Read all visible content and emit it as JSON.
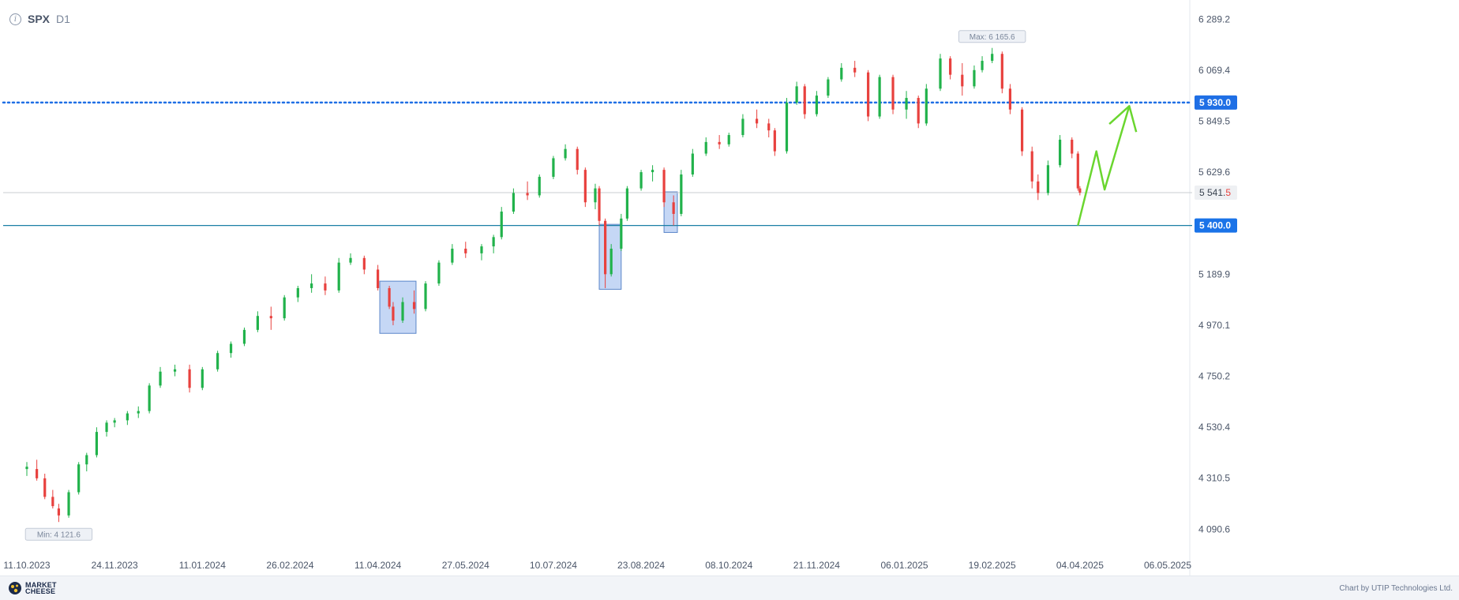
{
  "header": {
    "info_icon": "info-circle-icon",
    "symbol": "SPX",
    "timeframe": "D1"
  },
  "footer": {
    "logo_text": "MARKET CHEESE",
    "credit": "Chart by UTIP Technologies Ltd."
  },
  "chart_data": {
    "type": "candlestick",
    "symbol": "SPX",
    "timeframe": "D1",
    "x_tick_labels": [
      "11.10.2023",
      "24.11.2023",
      "11.01.2024",
      "26.02.2024",
      "11.04.2024",
      "27.05.2024",
      "10.07.2024",
      "23.08.2024",
      "08.10.2024",
      "21.11.2024",
      "06.01.2025",
      "19.02.2025",
      "04.04.2025",
      "06.05.2025"
    ],
    "y_tick_labels": [
      "6 289.2",
      "6 069.4",
      "5 849.5",
      "5 629.6",
      "5 189.9",
      "4 970.1",
      "4 750.2",
      "4 530.4",
      "4 310.5",
      "4 090.6"
    ],
    "y_ticks": [
      6289.2,
      6069.4,
      5849.5,
      5629.6,
      5189.9,
      4970.1,
      4750.2,
      4530.4,
      4310.5,
      4090.6
    ],
    "ylim": [
      4010,
      6345
    ],
    "max_label": "Max: 6 165.6",
    "max_value": 6165.6,
    "max_date": "19.02.2025",
    "min_label": "Min: 4 121.6",
    "min_value": 4121.6,
    "min_date": "27.10.2023",
    "current_price": 5541.5,
    "current_price_label": "5 541.5",
    "current_price_label_main": "5 541.",
    "current_price_label_last": "5",
    "horizontal_levels": [
      {
        "value": 5930.0,
        "label": "5 930.0",
        "style": "dotted",
        "color": "#1f6fe5"
      },
      {
        "value": 5400.0,
        "label": "5 400.0",
        "style": "solid",
        "color": "#1a7fa6"
      }
    ],
    "highlight_zones": [
      {
        "date_from": "12.04.2024",
        "date_to": "01.05.2024",
        "low": 4935,
        "high": 5160
      },
      {
        "date_from": "02.08.2024",
        "date_to": "13.08.2024",
        "low": 5125,
        "high": 5405
      },
      {
        "date_from": "04.09.2024",
        "date_to": "11.09.2024",
        "low": 5370,
        "high": 5545
      }
    ],
    "projection_path": [
      {
        "date": "03.04.2025",
        "value": 5400
      },
      {
        "date": "10.04.2025",
        "value": 5720
      },
      {
        "date": "13.04.2025",
        "value": 5555
      },
      {
        "date": "22.04.2025",
        "value": 5915
      }
    ],
    "candles": [
      {
        "date": "11.10.2023",
        "o": 4350,
        "h": 4380,
        "l": 4320,
        "c": 4360
      },
      {
        "date": "16.10.2023",
        "o": 4350,
        "h": 4390,
        "l": 4300,
        "c": 4310
      },
      {
        "date": "20.10.2023",
        "o": 4310,
        "h": 4330,
        "l": 4220,
        "c": 4230
      },
      {
        "date": "24.10.2023",
        "o": 4230,
        "h": 4260,
        "l": 4180,
        "c": 4190
      },
      {
        "date": "27.10.2023",
        "o": 4180,
        "h": 4200,
        "l": 4121.6,
        "c": 4150
      },
      {
        "date": "01.11.2023",
        "o": 4150,
        "h": 4260,
        "l": 4140,
        "c": 4250
      },
      {
        "date": "06.11.2023",
        "o": 4250,
        "h": 4380,
        "l": 4240,
        "c": 4370
      },
      {
        "date": "10.11.2023",
        "o": 4370,
        "h": 4420,
        "l": 4340,
        "c": 4410
      },
      {
        "date": "15.11.2023",
        "o": 4410,
        "h": 4530,
        "l": 4400,
        "c": 4510
      },
      {
        "date": "20.11.2023",
        "o": 4510,
        "h": 4560,
        "l": 4490,
        "c": 4550
      },
      {
        "date": "24.11.2023",
        "o": 4550,
        "h": 4570,
        "l": 4530,
        "c": 4560
      },
      {
        "date": "01.12.2023",
        "o": 4560,
        "h": 4600,
        "l": 4540,
        "c": 4590
      },
      {
        "date": "07.12.2023",
        "o": 4590,
        "h": 4620,
        "l": 4570,
        "c": 4600
      },
      {
        "date": "13.12.2023",
        "o": 4600,
        "h": 4720,
        "l": 4590,
        "c": 4710
      },
      {
        "date": "19.12.2023",
        "o": 4710,
        "h": 4790,
        "l": 4700,
        "c": 4770
      },
      {
        "date": "27.12.2023",
        "o": 4770,
        "h": 4800,
        "l": 4750,
        "c": 4780
      },
      {
        "date": "04.01.2024",
        "o": 4780,
        "h": 4800,
        "l": 4680,
        "c": 4700
      },
      {
        "date": "11.01.2024",
        "o": 4700,
        "h": 4790,
        "l": 4690,
        "c": 4780
      },
      {
        "date": "19.01.2024",
        "o": 4780,
        "h": 4860,
        "l": 4770,
        "c": 4850
      },
      {
        "date": "26.01.2024",
        "o": 4850,
        "h": 4900,
        "l": 4830,
        "c": 4890
      },
      {
        "date": "02.02.2024",
        "o": 4890,
        "h": 4960,
        "l": 4880,
        "c": 4950
      },
      {
        "date": "09.02.2024",
        "o": 4950,
        "h": 5030,
        "l": 4940,
        "c": 5010
      },
      {
        "date": "16.02.2024",
        "o": 5010,
        "h": 5050,
        "l": 4950,
        "c": 5000
      },
      {
        "date": "23.02.2024",
        "o": 5000,
        "h": 5100,
        "l": 4990,
        "c": 5090
      },
      {
        "date": "01.03.2024",
        "o": 5090,
        "h": 5140,
        "l": 5070,
        "c": 5130
      },
      {
        "date": "08.03.2024",
        "o": 5130,
        "h": 5190,
        "l": 5110,
        "c": 5150
      },
      {
        "date": "15.03.2024",
        "o": 5150,
        "h": 5180,
        "l": 5100,
        "c": 5120
      },
      {
        "date": "22.03.2024",
        "o": 5120,
        "h": 5260,
        "l": 5110,
        "c": 5240
      },
      {
        "date": "28.03.2024",
        "o": 5240,
        "h": 5280,
        "l": 5230,
        "c": 5260
      },
      {
        "date": "04.04.2024",
        "o": 5260,
        "h": 5270,
        "l": 5190,
        "c": 5210
      },
      {
        "date": "11.04.2024",
        "o": 5210,
        "h": 5230,
        "l": 5120,
        "c": 5130
      },
      {
        "date": "17.04.2024",
        "o": 5130,
        "h": 5140,
        "l": 5040,
        "c": 5050
      },
      {
        "date": "19.04.2024",
        "o": 5050,
        "h": 5070,
        "l": 4970,
        "c": 4990
      },
      {
        "date": "24.04.2024",
        "o": 4990,
        "h": 5090,
        "l": 4980,
        "c": 5070
      },
      {
        "date": "30.04.2024",
        "o": 5070,
        "h": 5120,
        "l": 5020,
        "c": 5040
      },
      {
        "date": "06.05.2024",
        "o": 5040,
        "h": 5160,
        "l": 5030,
        "c": 5150
      },
      {
        "date": "13.05.2024",
        "o": 5150,
        "h": 5250,
        "l": 5140,
        "c": 5240
      },
      {
        "date": "20.05.2024",
        "o": 5240,
        "h": 5320,
        "l": 5230,
        "c": 5300
      },
      {
        "date": "27.05.2024",
        "o": 5300,
        "h": 5330,
        "l": 5260,
        "c": 5280
      },
      {
        "date": "04.06.2024",
        "o": 5280,
        "h": 5320,
        "l": 5250,
        "c": 5310
      },
      {
        "date": "10.06.2024",
        "o": 5310,
        "h": 5360,
        "l": 5280,
        "c": 5350
      },
      {
        "date": "14.06.2024",
        "o": 5350,
        "h": 5480,
        "l": 5340,
        "c": 5460
      },
      {
        "date": "20.06.2024",
        "o": 5460,
        "h": 5560,
        "l": 5450,
        "c": 5540
      },
      {
        "date": "27.06.2024",
        "o": 5540,
        "h": 5590,
        "l": 5510,
        "c": 5530
      },
      {
        "date": "03.07.2024",
        "o": 5530,
        "h": 5620,
        "l": 5520,
        "c": 5610
      },
      {
        "date": "10.07.2024",
        "o": 5610,
        "h": 5700,
        "l": 5600,
        "c": 5690
      },
      {
        "date": "16.07.2024",
        "o": 5690,
        "h": 5750,
        "l": 5680,
        "c": 5730
      },
      {
        "date": "22.07.2024",
        "o": 5730,
        "h": 5740,
        "l": 5620,
        "c": 5640
      },
      {
        "date": "26.07.2024",
        "o": 5640,
        "h": 5650,
        "l": 5480,
        "c": 5500
      },
      {
        "date": "31.07.2024",
        "o": 5500,
        "h": 5580,
        "l": 5470,
        "c": 5560
      },
      {
        "date": "02.08.2024",
        "o": 5560,
        "h": 5570,
        "l": 5400,
        "c": 5420
      },
      {
        "date": "05.08.2024",
        "o": 5420,
        "h": 5430,
        "l": 5130,
        "c": 5190
      },
      {
        "date": "08.08.2024",
        "o": 5190,
        "h": 5320,
        "l": 5180,
        "c": 5300
      },
      {
        "date": "13.08.2024",
        "o": 5300,
        "h": 5450,
        "l": 5290,
        "c": 5430
      },
      {
        "date": "16.08.2024",
        "o": 5430,
        "h": 5570,
        "l": 5420,
        "c": 5560
      },
      {
        "date": "23.08.2024",
        "o": 5560,
        "h": 5640,
        "l": 5550,
        "c": 5630
      },
      {
        "date": "29.08.2024",
        "o": 5630,
        "h": 5660,
        "l": 5590,
        "c": 5640
      },
      {
        "date": "04.09.2024",
        "o": 5640,
        "h": 5650,
        "l": 5480,
        "c": 5500
      },
      {
        "date": "09.09.2024",
        "o": 5500,
        "h": 5530,
        "l": 5400,
        "c": 5450
      },
      {
        "date": "13.09.2024",
        "o": 5450,
        "h": 5640,
        "l": 5440,
        "c": 5620
      },
      {
        "date": "19.09.2024",
        "o": 5620,
        "h": 5730,
        "l": 5610,
        "c": 5710
      },
      {
        "date": "26.09.2024",
        "o": 5710,
        "h": 5780,
        "l": 5700,
        "c": 5760
      },
      {
        "date": "03.10.2024",
        "o": 5760,
        "h": 5790,
        "l": 5730,
        "c": 5750
      },
      {
        "date": "08.10.2024",
        "o": 5750,
        "h": 5800,
        "l": 5740,
        "c": 5790
      },
      {
        "date": "15.10.2024",
        "o": 5790,
        "h": 5880,
        "l": 5780,
        "c": 5860
      },
      {
        "date": "22.10.2024",
        "o": 5860,
        "h": 5900,
        "l": 5820,
        "c": 5840
      },
      {
        "date": "28.10.2024",
        "o": 5840,
        "h": 5860,
        "l": 5780,
        "c": 5810
      },
      {
        "date": "31.10.2024",
        "o": 5810,
        "h": 5820,
        "l": 5700,
        "c": 5720
      },
      {
        "date": "06.11.2024",
        "o": 5720,
        "h": 5950,
        "l": 5710,
        "c": 5930
      },
      {
        "date": "11.11.2024",
        "o": 5930,
        "h": 6020,
        "l": 5920,
        "c": 6000
      },
      {
        "date": "15.11.2024",
        "o": 6000,
        "h": 6010,
        "l": 5860,
        "c": 5880
      },
      {
        "date": "21.11.2024",
        "o": 5880,
        "h": 5980,
        "l": 5870,
        "c": 5960
      },
      {
        "date": "27.11.2024",
        "o": 5960,
        "h": 6040,
        "l": 5950,
        "c": 6030
      },
      {
        "date": "04.12.2024",
        "o": 6030,
        "h": 6100,
        "l": 6020,
        "c": 6080
      },
      {
        "date": "11.12.2024",
        "o": 6080,
        "h": 6110,
        "l": 6040,
        "c": 6060
      },
      {
        "date": "18.12.2024",
        "o": 6060,
        "h": 6070,
        "l": 5850,
        "c": 5870
      },
      {
        "date": "24.12.2024",
        "o": 5870,
        "h": 6050,
        "l": 5860,
        "c": 6040
      },
      {
        "date": "31.12.2024",
        "o": 6040,
        "h": 6050,
        "l": 5880,
        "c": 5900
      },
      {
        "date": "07.01.2025",
        "o": 5900,
        "h": 5980,
        "l": 5860,
        "c": 5950
      },
      {
        "date": "13.01.2025",
        "o": 5950,
        "h": 5960,
        "l": 5820,
        "c": 5840
      },
      {
        "date": "17.01.2025",
        "o": 5840,
        "h": 6010,
        "l": 5830,
        "c": 5990
      },
      {
        "date": "24.01.2025",
        "o": 5990,
        "h": 6140,
        "l": 5980,
        "c": 6120
      },
      {
        "date": "29.01.2025",
        "o": 6120,
        "h": 6130,
        "l": 6030,
        "c": 6050
      },
      {
        "date": "04.02.2025",
        "o": 6050,
        "h": 6100,
        "l": 5960,
        "c": 6000
      },
      {
        "date": "10.02.2025",
        "o": 6000,
        "h": 6090,
        "l": 5990,
        "c": 6070
      },
      {
        "date": "14.02.2025",
        "o": 6070,
        "h": 6130,
        "l": 6060,
        "c": 6110
      },
      {
        "date": "19.02.2025",
        "o": 6110,
        "h": 6165.6,
        "l": 6100,
        "c": 6140
      },
      {
        "date": "24.02.2025",
        "o": 6140,
        "h": 6150,
        "l": 5970,
        "c": 5990
      },
      {
        "date": "28.02.2025",
        "o": 5990,
        "h": 6010,
        "l": 5880,
        "c": 5900
      },
      {
        "date": "06.03.2025",
        "o": 5900,
        "h": 5910,
        "l": 5700,
        "c": 5720
      },
      {
        "date": "11.03.2025",
        "o": 5720,
        "h": 5740,
        "l": 5560,
        "c": 5590
      },
      {
        "date": "14.03.2025",
        "o": 5590,
        "h": 5620,
        "l": 5510,
        "c": 5540
      },
      {
        "date": "19.03.2025",
        "o": 5540,
        "h": 5680,
        "l": 5530,
        "c": 5660
      },
      {
        "date": "25.03.2025",
        "o": 5660,
        "h": 5790,
        "l": 5650,
        "c": 5770
      },
      {
        "date": "31.03.2025",
        "o": 5770,
        "h": 5780,
        "l": 5690,
        "c": 5710
      },
      {
        "date": "03.04.2025",
        "o": 5710,
        "h": 5720,
        "l": 5550,
        "c": 5560
      },
      {
        "date": "04.04.2025",
        "o": 5560,
        "h": 5570,
        "l": 5530,
        "c": 5541.5
      }
    ]
  }
}
